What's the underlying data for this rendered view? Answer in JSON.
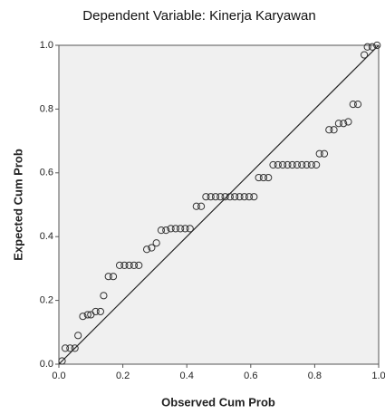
{
  "chart_data": {
    "type": "scatter",
    "title": "Dependent Variable: Kinerja Karyawan",
    "x_label": "Observed Cum Prob",
    "y_label": "Expected Cum Prob",
    "xlim": [
      0,
      1
    ],
    "ylim": [
      0,
      1
    ],
    "xticks": [
      {
        "value": 0,
        "label": "0.0"
      },
      0.2,
      0.4,
      0.6,
      0.8,
      {
        "value": 1,
        "label": "1.0"
      }
    ],
    "yticks": [
      {
        "value": 0,
        "label": "0.0"
      },
      0.2,
      0.4,
      0.6,
      0.8,
      {
        "value": 1,
        "label": "1.0"
      }
    ],
    "color": "#333333",
    "reference_line": true,
    "series": [
      {
        "x": [
          0.01,
          0.02,
          0.035,
          0.05,
          0.06,
          0.075,
          0.09,
          0.1,
          0.115,
          0.13,
          0.14,
          0.155,
          0.17,
          0.19,
          0.205,
          0.22,
          0.235,
          0.25,
          0.275,
          0.29,
          0.305,
          0.32,
          0.335,
          0.35,
          0.365,
          0.38,
          0.395,
          0.41,
          0.43,
          0.445,
          0.46,
          0.475,
          0.49,
          0.505,
          0.52,
          0.535,
          0.55,
          0.565,
          0.58,
          0.595,
          0.61,
          0.625,
          0.64,
          0.655,
          0.67,
          0.685,
          0.7,
          0.715,
          0.73,
          0.745,
          0.76,
          0.775,
          0.79,
          0.805,
          0.815,
          0.83,
          0.845,
          0.86,
          0.875,
          0.89,
          0.905,
          0.92,
          0.935,
          0.955,
          0.965,
          0.98,
          0.995
        ],
        "y": [
          0.01,
          0.05,
          0.05,
          0.05,
          0.09,
          0.15,
          0.155,
          0.155,
          0.165,
          0.165,
          0.215,
          0.275,
          0.275,
          0.31,
          0.31,
          0.31,
          0.31,
          0.31,
          0.36,
          0.365,
          0.38,
          0.42,
          0.42,
          0.425,
          0.425,
          0.425,
          0.425,
          0.425,
          0.495,
          0.495,
          0.525,
          0.525,
          0.525,
          0.525,
          0.525,
          0.525,
          0.525,
          0.525,
          0.525,
          0.525,
          0.525,
          0.585,
          0.585,
          0.585,
          0.625,
          0.625,
          0.625,
          0.625,
          0.625,
          0.625,
          0.625,
          0.625,
          0.625,
          0.625,
          0.66,
          0.66,
          0.735,
          0.735,
          0.755,
          0.755,
          0.76,
          0.815,
          0.815,
          0.97,
          0.995,
          0.995,
          1.0
        ]
      }
    ]
  }
}
